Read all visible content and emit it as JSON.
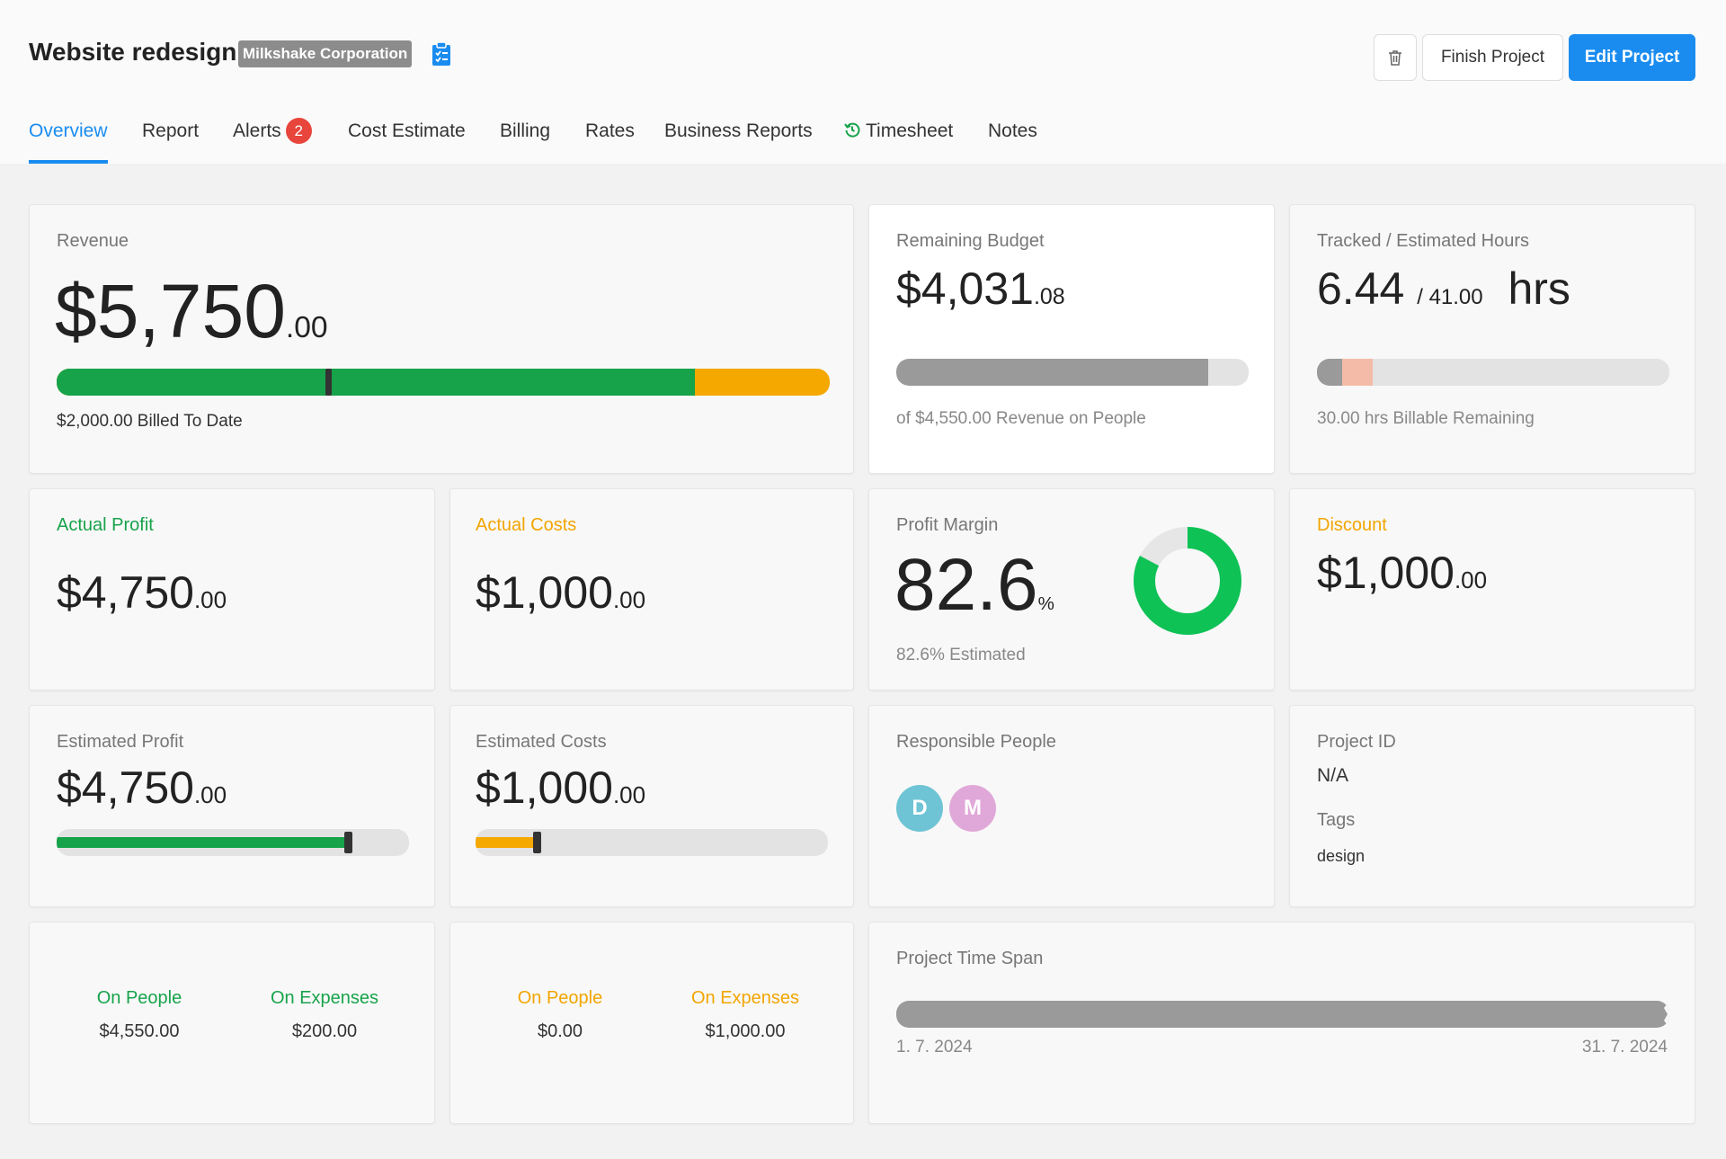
{
  "header": {
    "title": "Website redesign",
    "client": "Milkshake Corporation",
    "finish_label": "Finish Project",
    "edit_label": "Edit Project",
    "icons": [
      "clipboard-icon",
      "trash-icon"
    ]
  },
  "tabs": {
    "overview": "Overview",
    "report": "Report",
    "alerts": "Alerts",
    "alerts_count": "2",
    "cost_estimate": "Cost Estimate",
    "billing": "Billing",
    "rates": "Rates",
    "business_reports": "Business Reports",
    "timesheet": "Timesheet",
    "notes": "Notes"
  },
  "revenue": {
    "label": "Revenue",
    "amount": "$5,750",
    "cents": ".00",
    "billed": "$2,000.00 Billed To Date",
    "green_fraction": 0.826,
    "billed_marker_fraction": 0.348
  },
  "remaining_budget": {
    "label": "Remaining Budget",
    "amount": "$4,031",
    "cents": ".08",
    "note": "of $4,550.00 Revenue on People",
    "used_fraction": 0.886
  },
  "hours": {
    "label": "Tracked / Estimated Hours",
    "tracked": "6.44",
    "estimated": "/ 41.00",
    "unit": "hrs",
    "note": "30.00 hrs Billable Remaining",
    "tracked_fraction": 0.157
  },
  "actual_profit": {
    "label": "Actual Profit",
    "amount": "$4,750",
    "cents": ".00"
  },
  "actual_costs": {
    "label": "Actual Costs",
    "amount": "$1,000",
    "cents": ".00"
  },
  "profit_margin": {
    "label": "Profit Margin",
    "value": "82.6",
    "unit": "%",
    "note": "82.6% Estimated",
    "fraction": 0.826
  },
  "discount": {
    "label": "Discount",
    "amount": "$1,000",
    "cents": ".00"
  },
  "estimated_profit": {
    "label": "Estimated Profit",
    "amount": "$4,750",
    "cents": ".00",
    "fraction": 0.826
  },
  "estimated_costs": {
    "label": "Estimated Costs",
    "amount": "$1,000",
    "cents": ".00",
    "fraction": 0.174
  },
  "responsible_people": {
    "label": "Responsible People",
    "people": [
      {
        "initial": "D",
        "color": "#6ec4d4"
      },
      {
        "initial": "M",
        "color": "#e0a8d8"
      }
    ]
  },
  "project_info": {
    "id_label": "Project ID",
    "id_value": "N/A",
    "tags_label": "Tags",
    "tags_value": "design"
  },
  "profit_breakdown": {
    "people_label": "On People",
    "people_value": "$4,550.00",
    "expenses_label": "On Expenses",
    "expenses_value": "$200.00"
  },
  "cost_breakdown": {
    "people_label": "On People",
    "people_value": "$0.00",
    "expenses_label": "On Expenses",
    "expenses_value": "$1,000.00"
  },
  "time_span": {
    "label": "Project Time Span",
    "start": "1. 7. 2024",
    "end": "31. 7. 2024"
  },
  "colors": {
    "accent": "#1a8cf0",
    "green": "#17a34a",
    "orange": "#f2a500",
    "alert": "#e8453c",
    "donut_green": "#0ec255"
  }
}
